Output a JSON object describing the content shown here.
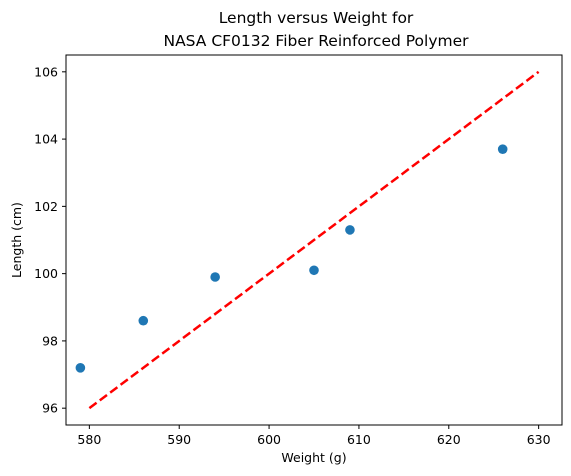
{
  "chart_data": {
    "type": "scatter",
    "title_lines": [
      "Length versus Weight for",
      "NASA CF0132 Fiber Reinforced Polymer"
    ],
    "xlabel": "Weight (g)",
    "ylabel": "Length (cm)",
    "xlim": [
      577.4,
      632.6
    ],
    "ylim": [
      95.5,
      106.5
    ],
    "xticks": [
      580,
      590,
      600,
      610,
      620,
      630
    ],
    "yticks": [
      96,
      98,
      100,
      102,
      104,
      106
    ],
    "grid": false,
    "series": [
      {
        "kind": "points",
        "color": "#1f77b4",
        "x": [
          579,
          586,
          594,
          605,
          609,
          626
        ],
        "y": [
          97.2,
          98.6,
          99.9,
          100.1,
          101.3,
          103.7
        ]
      },
      {
        "kind": "line",
        "style": "dashed",
        "color": "#ff0000",
        "x": [
          580,
          630
        ],
        "y": [
          96,
          106
        ]
      }
    ]
  }
}
